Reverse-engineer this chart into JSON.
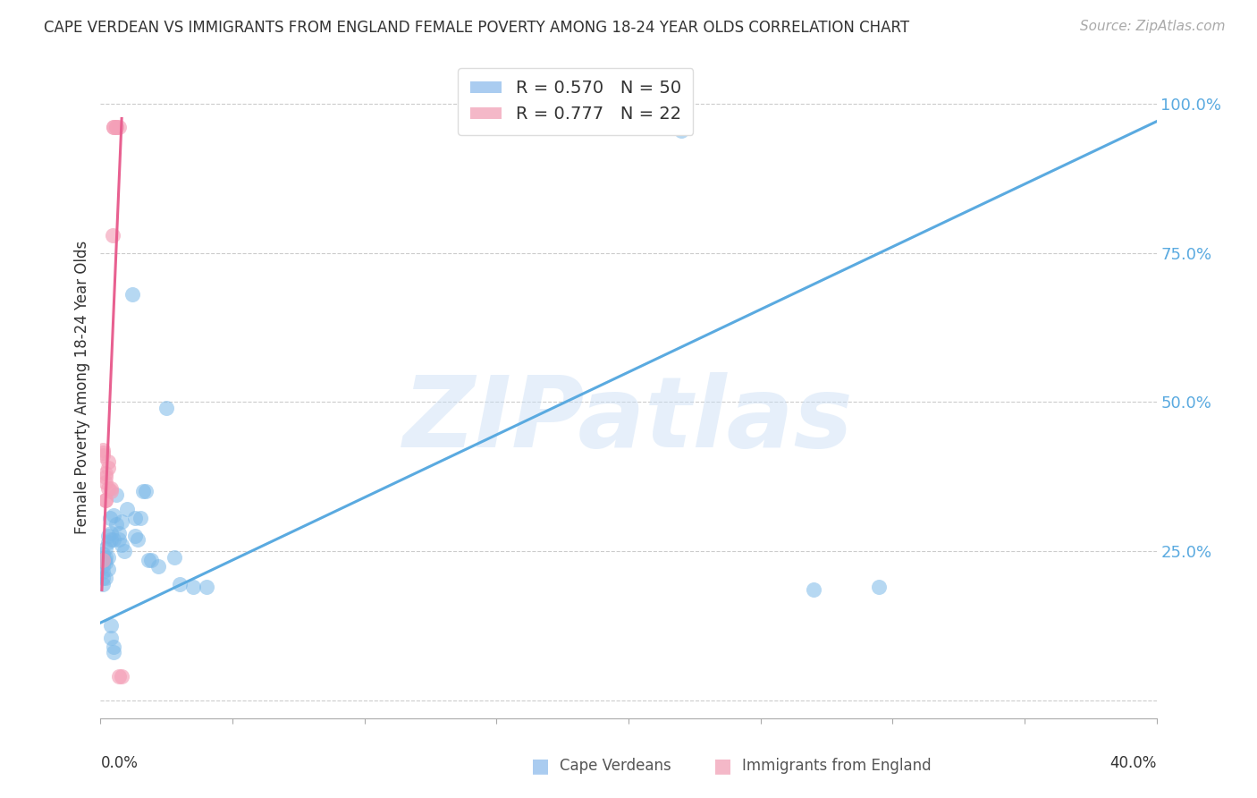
{
  "title": "CAPE VERDEAN VS IMMIGRANTS FROM ENGLAND FEMALE POVERTY AMONG 18-24 YEAR OLDS CORRELATION CHART",
  "source": "Source: ZipAtlas.com",
  "ylabel": "Female Poverty Among 18-24 Year Olds",
  "right_yticks": [
    0.0,
    0.25,
    0.5,
    0.75,
    1.0
  ],
  "right_yticklabels": [
    "",
    "25.0%",
    "50.0%",
    "75.0%",
    "100.0%"
  ],
  "xmin": 0.0,
  "xmax": 0.4,
  "ymin": -0.03,
  "ymax": 1.08,
  "watermark": "ZIPatlas",
  "blue_color": "#7ab8e8",
  "pink_color": "#f4a0b8",
  "blue_line_color": "#5aaae0",
  "pink_line_color": "#e86090",
  "blue_scatter": [
    [
      0.001,
      0.205
    ],
    [
      0.001,
      0.225
    ],
    [
      0.001,
      0.235
    ],
    [
      0.001,
      0.245
    ],
    [
      0.001,
      0.215
    ],
    [
      0.001,
      0.195
    ],
    [
      0.0015,
      0.235
    ],
    [
      0.002,
      0.24
    ],
    [
      0.002,
      0.23
    ],
    [
      0.002,
      0.255
    ],
    [
      0.002,
      0.205
    ],
    [
      0.003,
      0.265
    ],
    [
      0.003,
      0.275
    ],
    [
      0.003,
      0.22
    ],
    [
      0.003,
      0.24
    ],
    [
      0.0035,
      0.305
    ],
    [
      0.004,
      0.28
    ],
    [
      0.004,
      0.27
    ],
    [
      0.004,
      0.125
    ],
    [
      0.004,
      0.105
    ],
    [
      0.005,
      0.31
    ],
    [
      0.005,
      0.27
    ],
    [
      0.005,
      0.09
    ],
    [
      0.005,
      0.08
    ],
    [
      0.006,
      0.295
    ],
    [
      0.006,
      0.345
    ],
    [
      0.007,
      0.28
    ],
    [
      0.007,
      0.27
    ],
    [
      0.008,
      0.3
    ],
    [
      0.008,
      0.26
    ],
    [
      0.009,
      0.25
    ],
    [
      0.01,
      0.32
    ],
    [
      0.012,
      0.68
    ],
    [
      0.013,
      0.305
    ],
    [
      0.013,
      0.275
    ],
    [
      0.014,
      0.27
    ],
    [
      0.015,
      0.305
    ],
    [
      0.016,
      0.35
    ],
    [
      0.017,
      0.35
    ],
    [
      0.018,
      0.235
    ],
    [
      0.019,
      0.235
    ],
    [
      0.022,
      0.225
    ],
    [
      0.025,
      0.49
    ],
    [
      0.028,
      0.24
    ],
    [
      0.03,
      0.195
    ],
    [
      0.035,
      0.19
    ],
    [
      0.04,
      0.19
    ],
    [
      0.22,
      0.955
    ],
    [
      0.27,
      0.185
    ],
    [
      0.295,
      0.19
    ]
  ],
  "pink_scatter": [
    [
      0.001,
      0.235
    ],
    [
      0.001,
      0.42
    ],
    [
      0.001,
      0.41
    ],
    [
      0.001,
      0.415
    ],
    [
      0.002,
      0.38
    ],
    [
      0.002,
      0.365
    ],
    [
      0.002,
      0.375
    ],
    [
      0.002,
      0.335
    ],
    [
      0.002,
      0.335
    ],
    [
      0.003,
      0.4
    ],
    [
      0.003,
      0.39
    ],
    [
      0.003,
      0.355
    ],
    [
      0.004,
      0.355
    ],
    [
      0.004,
      0.35
    ],
    [
      0.0045,
      0.78
    ],
    [
      0.005,
      0.96
    ],
    [
      0.005,
      0.96
    ],
    [
      0.006,
      0.96
    ],
    [
      0.006,
      0.96
    ],
    [
      0.007,
      0.96
    ],
    [
      0.007,
      0.04
    ],
    [
      0.008,
      0.04
    ]
  ],
  "blue_line_x": [
    0.0,
    0.4
  ],
  "blue_line_y": [
    0.13,
    0.97
  ],
  "pink_line_x": [
    0.0005,
    0.008
  ],
  "pink_line_y": [
    0.185,
    0.975
  ]
}
